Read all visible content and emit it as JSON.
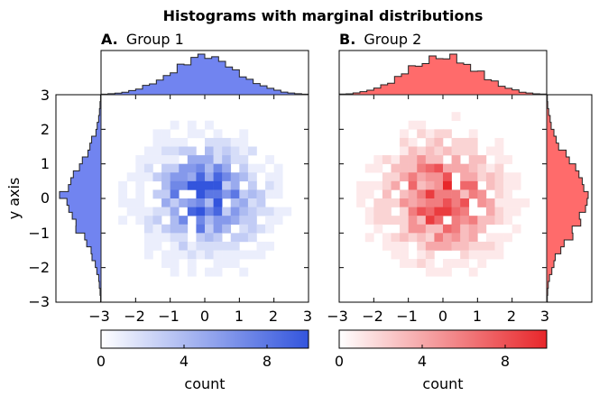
{
  "chart_data": {
    "type": "heatmap",
    "title": "Histograms with marginal distributions",
    "ylabel": "y axis",
    "xlim": [
      -3,
      3
    ],
    "ylim": [
      -3,
      3
    ],
    "x_ticks": [
      "−3",
      "−2",
      "−1",
      "0",
      "1",
      "2",
      "3"
    ],
    "y_ticks": [
      "3",
      "2",
      "1",
      "0",
      "−1",
      "−2",
      "−3"
    ],
    "bins": 24,
    "colorbar": {
      "label": "count",
      "ticks": [
        "0",
        "4",
        "8"
      ],
      "range": [
        0,
        10
      ]
    },
    "panels": [
      {
        "label": "A.",
        "name": "Group 1",
        "color": "#3355dd",
        "hist_fill": "#7184f0",
        "cbar_colors": [
          "#ffffff",
          "#3355dd"
        ],
        "seed": 17
      },
      {
        "label": "B.",
        "name": "Group 2",
        "color": "#e8262a",
        "hist_fill": "#ff6b6b",
        "cbar_colors": [
          "#ffffff",
          "#e8262a"
        ],
        "seed": 59
      }
    ]
  }
}
